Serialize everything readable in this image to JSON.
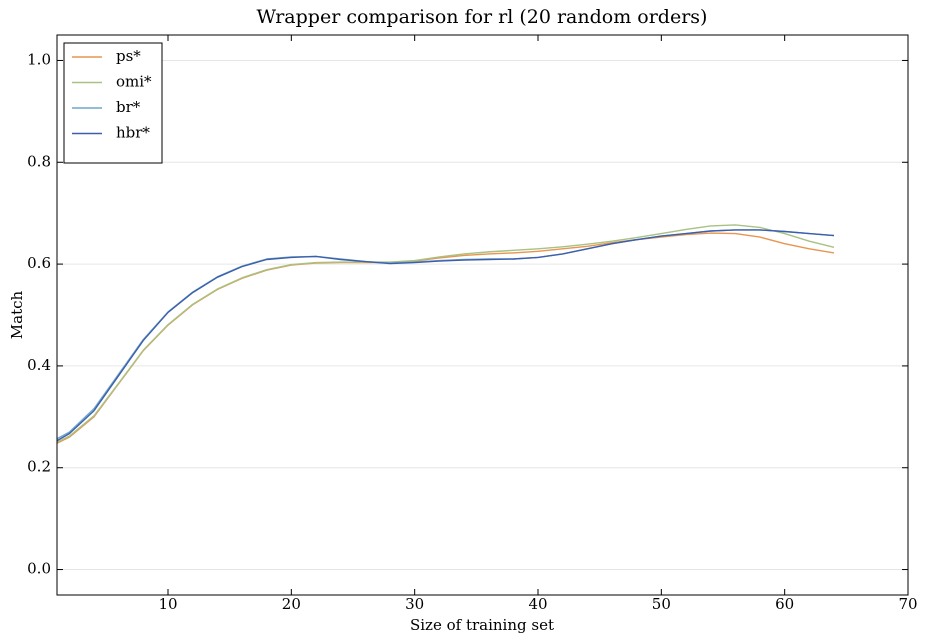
{
  "chart_data": {
    "type": "line",
    "title": "Wrapper comparison for rl (20 random orders)",
    "x_label": "Size of training set",
    "y_label": "Match",
    "x": [
      1,
      2,
      4,
      6,
      8,
      10,
      12,
      14,
      16,
      18,
      20,
      22,
      24,
      26,
      28,
      30,
      32,
      34,
      36,
      38,
      40,
      42,
      44,
      46,
      48,
      50,
      52,
      54,
      56,
      58,
      60,
      62,
      64
    ],
    "series": [
      {
        "name": "ps*",
        "color": "#e8954f",
        "values": [
          0.248,
          0.26,
          0.3,
          0.365,
          0.43,
          0.48,
          0.52,
          0.55,
          0.572,
          0.588,
          0.598,
          0.602,
          0.603,
          0.603,
          0.603,
          0.606,
          0.612,
          0.617,
          0.62,
          0.622,
          0.625,
          0.63,
          0.635,
          0.642,
          0.648,
          0.653,
          0.658,
          0.661,
          0.66,
          0.653,
          0.64,
          0.63,
          0.622
        ]
      },
      {
        "name": "omi*",
        "color": "#a9c183",
        "values": [
          0.25,
          0.262,
          0.302,
          0.366,
          0.431,
          0.481,
          0.521,
          0.551,
          0.573,
          0.589,
          0.599,
          0.603,
          0.604,
          0.604,
          0.604,
          0.607,
          0.614,
          0.62,
          0.624,
          0.627,
          0.63,
          0.634,
          0.639,
          0.645,
          0.652,
          0.66,
          0.668,
          0.675,
          0.677,
          0.672,
          0.66,
          0.645,
          0.633
        ]
      },
      {
        "name": "br*",
        "color": "#6fa7c9",
        "values": [
          0.257,
          0.27,
          0.316,
          0.384,
          0.452,
          0.506,
          0.545,
          0.575,
          0.596,
          0.61,
          0.614,
          0.615,
          0.61,
          0.605,
          0.602,
          0.604,
          0.607,
          0.609,
          0.61,
          0.61,
          0.613,
          0.62,
          0.63,
          0.64,
          0.648,
          0.655,
          0.66,
          0.665,
          0.667,
          0.667,
          0.664,
          0.66,
          0.656
        ]
      },
      {
        "name": "hbr*",
        "color": "#3d5fab",
        "values": [
          0.253,
          0.267,
          0.312,
          0.381,
          0.45,
          0.505,
          0.544,
          0.574,
          0.595,
          0.609,
          0.613,
          0.615,
          0.609,
          0.605,
          0.601,
          0.603,
          0.606,
          0.608,
          0.609,
          0.61,
          0.613,
          0.62,
          0.63,
          0.64,
          0.648,
          0.655,
          0.66,
          0.665,
          0.667,
          0.667,
          0.664,
          0.66,
          0.656
        ]
      }
    ],
    "xlim": [
      1,
      70
    ],
    "xticks": [
      10,
      20,
      30,
      40,
      50,
      60,
      70
    ],
    "ylim": [
      -0.05,
      1.05
    ],
    "yticks": [
      {
        "value": 0,
        "label": "0.0"
      },
      0.2,
      0.4,
      0.6,
      0.8,
      {
        "value": 1,
        "label": "1.0"
      }
    ],
    "grid": true,
    "legend": "upper left"
  }
}
